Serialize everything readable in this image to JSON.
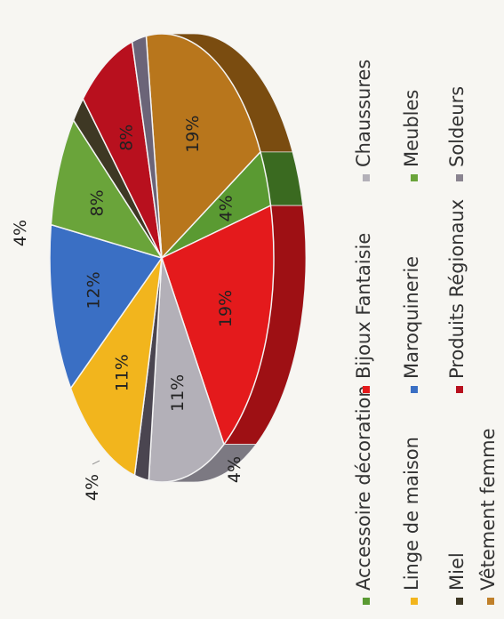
{
  "chart_data": {
    "type": "pie",
    "title": "",
    "three_d": true,
    "legend_placement": "right",
    "categories": [
      "Accessoire décoration",
      "Bijoux Fantaisie",
      "Chaussures",
      "Linge de maison",
      "Maroquinerie",
      "Meubles",
      "Miel",
      "Produits Régionaux",
      "Soldeurs",
      "Vêtement femme"
    ],
    "slices": [
      {
        "name": "Vêtement femme",
        "value": 19,
        "label": "19%",
        "color": "#b8761c",
        "side": "#7a4c10"
      },
      {
        "name": "Accessoire décoration",
        "value": 4,
        "label": "4%",
        "color": "#5a9a32",
        "side": "#3a6a20"
      },
      {
        "name": "Bijoux Fantaisie",
        "value": 19,
        "label": "19%",
        "color": "#e41a1c",
        "side": "#9e1014"
      },
      {
        "name": "Chaussures",
        "value": 11,
        "label": "11%",
        "color": "#b3b0b8",
        "side": "#7c7982"
      },
      {
        "name": "Soldeurs",
        "value": 2,
        "label": "",
        "color": "#4a4550",
        "side": "#2e2a32"
      },
      {
        "name": "Vêtement femme",
        "value": 0,
        "label": "",
        "color": "#b8761c",
        "side": "#7a4c10"
      },
      {
        "name": "Linge de maison",
        "value": 11,
        "label": "11%",
        "color": "#f2b51d",
        "side": "#a87d12"
      },
      {
        "name": "Maroquinerie",
        "value": 12,
        "label": "12%",
        "color": "#3a6fc4",
        "side": "#22468a"
      },
      {
        "name": "Meubles",
        "value": 8,
        "label": "8%",
        "color": "#6aa43a",
        "side": "#4a7428"
      },
      {
        "name": "Miel",
        "value": 2,
        "label": "",
        "color": "#3e3824",
        "side": "#28241a"
      },
      {
        "name": "Produits Régionaux",
        "value": 8,
        "label": "8%",
        "color": "#b8101e",
        "side": "#7e0c14"
      },
      {
        "name": "Soldeurs",
        "value": 2,
        "label": "",
        "color": "#6b6478",
        "side": "#4a4454"
      }
    ],
    "outer_labels": [
      "4%",
      "4%",
      "4%"
    ],
    "legend": [
      {
        "label": "Accessoire décoration",
        "color": "#5a9a32"
      },
      {
        "label": "Bijoux Fantaisie",
        "color": "#e41a1c"
      },
      {
        "label": "Chaussures",
        "color": "#b3b0b8"
      },
      {
        "label": "Linge de maison",
        "color": "#f2b51d"
      },
      {
        "label": "Maroquinerie",
        "color": "#3a6fc4"
      },
      {
        "label": "Meubles",
        "color": "#6aa43a"
      },
      {
        "label": "Miel",
        "color": "#3e3824"
      },
      {
        "label": "Produits Régionaux",
        "color": "#b8101e"
      },
      {
        "label": "Soldeurs",
        "color": "#8a8490"
      },
      {
        "label": "Vêtement femme",
        "color": "#c0802a"
      }
    ]
  }
}
